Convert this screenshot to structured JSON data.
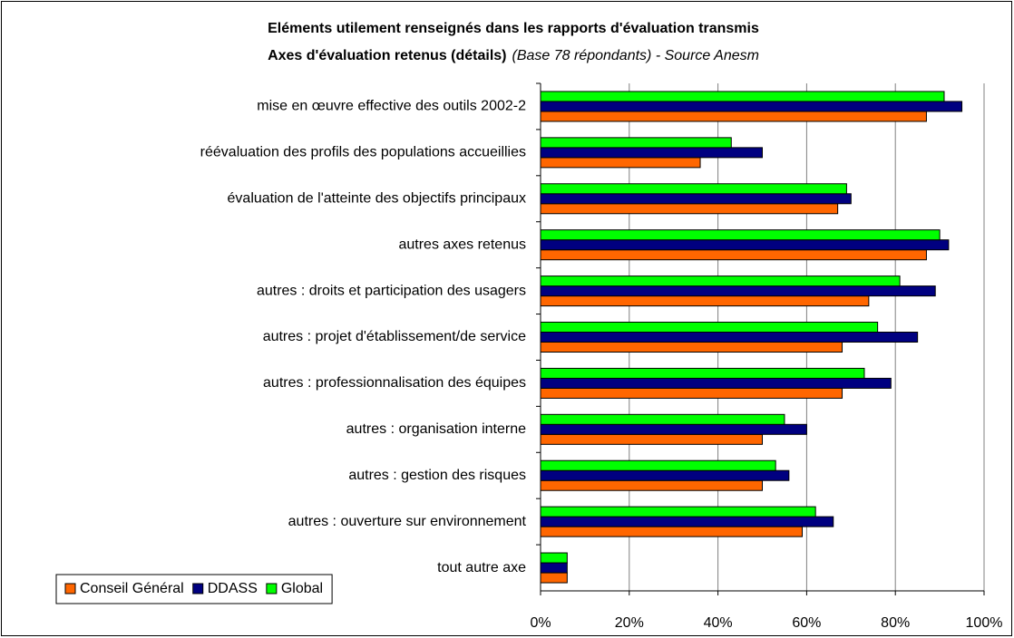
{
  "chart_data": {
    "type": "hbar",
    "title": "Eléments utilement renseignés dans les rapports d'évaluation transmis",
    "subtitle": "Axes d'évaluation retenus (détails)",
    "subtitle_note": "(Base 78 répondants) - Source Anesm",
    "categories": [
      "mise en œuvre effective des outils 2002-2",
      "réévaluation des profils des populations accueillies",
      "évaluation de l'atteinte des objectifs principaux",
      "autres axes retenus",
      "autres : droits et participation des usagers",
      "autres : projet d'établissement/de service",
      "autres : professionnalisation des équipes",
      "autres : organisation interne",
      "autres : gestion des risques",
      "autres : ouverture sur environnement",
      "tout autre axe"
    ],
    "series": [
      {
        "name": "Conseil Général",
        "color": "#ff6600",
        "values": [
          87,
          36,
          67,
          87,
          74,
          68,
          68,
          50,
          50,
          59,
          6
        ]
      },
      {
        "name": "DDASS",
        "color": "#000080",
        "values": [
          95,
          50,
          70,
          92,
          89,
          85,
          79,
          60,
          56,
          66,
          6
        ]
      },
      {
        "name": "Global",
        "color": "#00ff00",
        "values": [
          91,
          43,
          69,
          90,
          81,
          76,
          73,
          55,
          53,
          62,
          6
        ]
      }
    ],
    "xlim": [
      0,
      100
    ],
    "xticks": [
      {
        "value": 0,
        "label": "0%"
      },
      {
        "value": 20,
        "label": "20%"
      },
      {
        "value": 40,
        "label": "40%"
      },
      {
        "value": 60,
        "label": "60%"
      },
      {
        "value": 80,
        "label": "80%"
      },
      {
        "value": 100,
        "label": "100%"
      }
    ],
    "grid": true,
    "legend": "bottom-left"
  }
}
